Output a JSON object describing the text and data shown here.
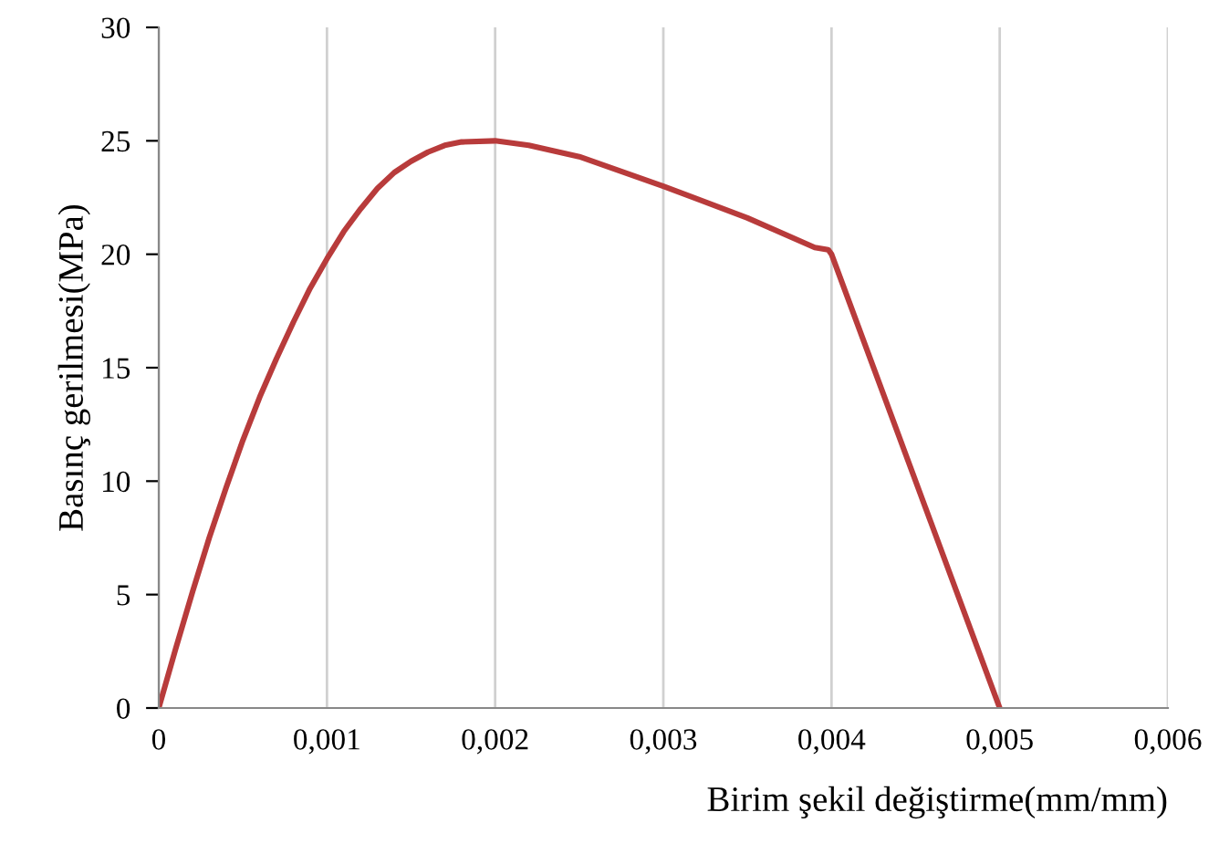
{
  "chart_data": {
    "type": "line",
    "xlabel": "Birim şekil değiştirme(mm/mm)",
    "ylabel": "Basınç gerilmesi(MPa)",
    "x": [
      0,
      0.0001,
      0.0002,
      0.0003,
      0.0004,
      0.0005,
      0.0006,
      0.0007,
      0.0008,
      0.0009,
      0.001,
      0.0011,
      0.0012,
      0.0013,
      0.0014,
      0.0015,
      0.0016,
      0.0017,
      0.0018,
      0.002,
      0.0022,
      0.0025,
      0.003,
      0.0035,
      0.0039,
      0.00398,
      0.004,
      0.005
    ],
    "series": [
      {
        "color": "#b83b3b",
        "values": [
          0,
          2.6,
          5.1,
          7.5,
          9.7,
          11.8,
          13.7,
          15.4,
          17.0,
          18.5,
          19.8,
          21.0,
          22.0,
          22.9,
          23.6,
          24.1,
          24.5,
          24.8,
          24.95,
          25,
          24.8,
          24.3,
          23.0,
          21.6,
          20.3,
          20.2,
          20,
          0
        ]
      }
    ],
    "xlim": [
      0,
      0.006
    ],
    "xticks": [
      {
        "value": 0,
        "label": "0"
      },
      {
        "value": 0.001,
        "label": "0,001"
      },
      {
        "value": 0.002,
        "label": "0,002"
      },
      {
        "value": 0.003,
        "label": "0,003"
      },
      {
        "value": 0.004,
        "label": "0,004"
      },
      {
        "value": 0.005,
        "label": "0,005"
      },
      {
        "value": 0.006,
        "label": "0,006"
      }
    ],
    "ylim": [
      0,
      30
    ],
    "yticks": [
      0,
      5,
      10,
      15,
      20,
      25,
      30
    ],
    "grid": "x",
    "legend": false,
    "marker": "none",
    "line_style": "solid"
  }
}
